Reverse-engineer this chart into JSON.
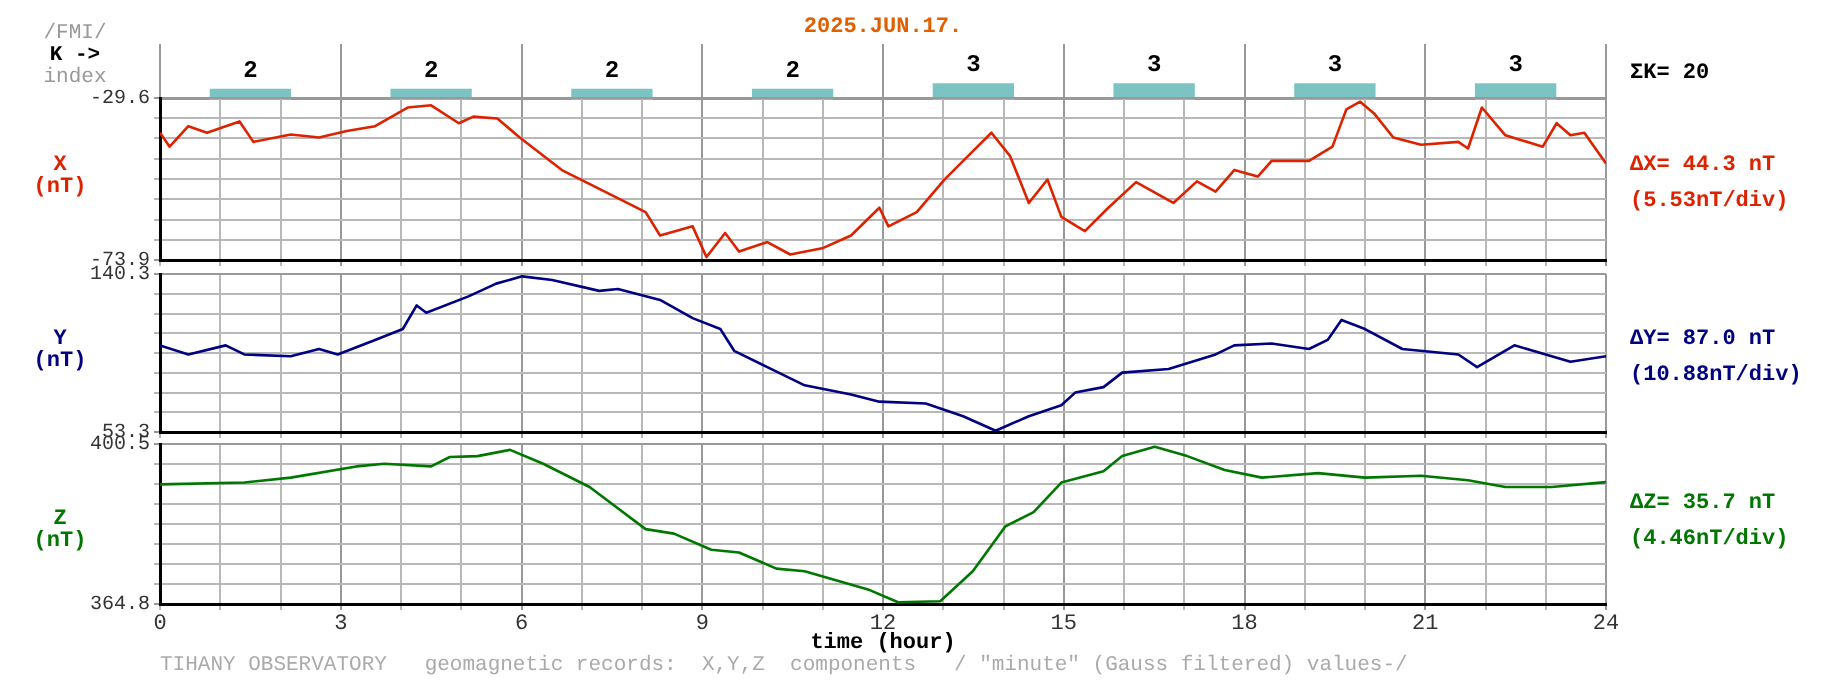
{
  "chart_data": [
    {
      "type": "bar",
      "title": "2025.JUN.17.",
      "ylabel": "K ->",
      "annotations": [
        "/FMI/",
        "index",
        "ΣK= 20"
      ],
      "categories": [
        null,
        null,
        null,
        null,
        null,
        null,
        null,
        null
      ],
      "values": [
        2,
        2,
        2,
        2,
        3,
        3,
        3,
        3
      ],
      "color": "#7cc4c4",
      "data_labels": true,
      "tick_labels": false,
      "grid": "x",
      "legend": false
    },
    {
      "type": "line",
      "ylabel": "X (nT)",
      "annotations": [
        "ΔX= 44.3 nT",
        "(5.53nT/div)"
      ],
      "series": [
        {
          "color": "#dd2200",
          "x": [
            0,
            0.16,
            0.47,
            0.78,
            1.32,
            1.55,
            2.17,
            2.64,
            3.1,
            3.57,
            4.11,
            4.5,
            4.96,
            5.2,
            5.6,
            5.97,
            6.67,
            7.44,
            8.06,
            8.3,
            8.84,
            9.07,
            9.38,
            9.61,
            10.08,
            10.46,
            11.01,
            11.47,
            11.94,
            12.09,
            12.56,
            13.02,
            13.41,
            13.8,
            14.11,
            14.42,
            14.73,
            14.96,
            15.35,
            15.74,
            16.2,
            16.82,
            17.21,
            17.52,
            17.83,
            18.22,
            18.45,
            19.07,
            19.46,
            19.69,
            19.92,
            20.16,
            20.47,
            20.93,
            21.55,
            21.71,
            21.94,
            22.33,
            22.95,
            23.18,
            23.41,
            23.64,
            24
          ],
          "values": [
            -39.1,
            -42.9,
            -37.3,
            -39.1,
            -36.0,
            -41.6,
            -39.6,
            -40.4,
            -38.6,
            -37.3,
            -32.2,
            -31.6,
            -36.5,
            -34.7,
            -35.2,
            -40.4,
            -49.3,
            -55.7,
            -60.8,
            -67.2,
            -64.7,
            -73.1,
            -66.5,
            -71.6,
            -69.0,
            -72.4,
            -70.6,
            -67.2,
            -59.6,
            -64.7,
            -60.8,
            -51.9,
            -45.5,
            -39.1,
            -45.5,
            -58.3,
            -51.9,
            -62.1,
            -66.0,
            -59.6,
            -52.6,
            -58.3,
            -52.4,
            -55.2,
            -49.3,
            -51.1,
            -46.8,
            -46.8,
            -42.9,
            -32.7,
            -30.6,
            -34.0,
            -40.4,
            -42.4,
            -41.6,
            -43.4,
            -32.2,
            -39.8,
            -42.9,
            -36.5,
            -39.8,
            -39.1,
            -47.5
          ]
        }
      ],
      "xlim": [
        0,
        24
      ],
      "xticks": [
        0,
        {
          "value": 1,
          "label": null
        },
        {
          "value": 2,
          "label": null
        },
        3,
        {
          "value": 4,
          "label": null
        },
        {
          "value": 5,
          "label": null
        },
        6,
        {
          "value": 7,
          "label": null
        },
        {
          "value": 8,
          "label": null
        },
        9,
        {
          "value": 10,
          "label": null
        },
        {
          "value": 11,
          "label": null
        },
        12,
        {
          "value": 13,
          "label": null
        },
        {
          "value": 14,
          "label": null
        },
        15,
        {
          "value": 16,
          "label": null
        },
        {
          "value": 17,
          "label": null
        },
        18,
        {
          "value": 19,
          "label": null
        },
        {
          "value": 20,
          "label": null
        },
        21,
        {
          "value": 22,
          "label": null
        },
        {
          "value": 23,
          "label": null
        },
        24
      ],
      "ylim": [
        -73.9,
        -29.6
      ],
      "yticks": [
        -73.9,
        {
          "value": -68.36,
          "label": null
        },
        {
          "value": -62.83,
          "label": null
        },
        {
          "value": -57.29,
          "label": null
        },
        {
          "value": -51.75,
          "label": null
        },
        {
          "value": -46.21,
          "label": null
        },
        {
          "value": -40.67,
          "label": null
        },
        {
          "value": -35.14,
          "label": null
        },
        -29.6
      ],
      "tick_labels": "y",
      "grid": true,
      "legend": false,
      "marker": "none",
      "line_style": "solid"
    },
    {
      "type": "line",
      "ylabel": "Y (nT)",
      "annotations": [
        "ΔY= 87.0 nT",
        "(10.88nT/div)"
      ],
      "series": [
        {
          "color": "#000080",
          "x": [
            0,
            0.47,
            1.09,
            1.4,
            2.17,
            2.64,
            2.95,
            3.57,
            4.03,
            4.26,
            4.42,
            5.12,
            5.58,
            6.01,
            6.51,
            7.29,
            7.6,
            8.3,
            8.84,
            9.3,
            9.53,
            10.08,
            10.7,
            11.47,
            11.94,
            12.71,
            13.33,
            13.87,
            14.42,
            14.96,
            15.19,
            15.66,
            15.97,
            16.74,
            17.52,
            17.83,
            18.45,
            19.07,
            19.38,
            19.61,
            20.0,
            20.62,
            21.55,
            21.86,
            22.48,
            23.41,
            24
          ],
          "values": [
            101,
            96,
            101,
            96,
            95,
            99,
            96,
            104,
            110,
            123,
            119,
            128,
            135,
            139,
            137,
            131,
            132,
            126,
            116,
            110,
            98,
            89,
            79,
            74,
            70,
            69,
            62,
            54,
            62,
            68,
            75,
            78,
            86,
            88,
            96,
            101,
            102,
            99,
            104,
            115,
            110,
            99,
            96,
            89,
            101,
            92,
            95
          ]
        }
      ],
      "xlim": [
        0,
        24
      ],
      "xticks": [
        0,
        {
          "value": 1,
          "label": null
        },
        {
          "value": 2,
          "label": null
        },
        3,
        {
          "value": 4,
          "label": null
        },
        {
          "value": 5,
          "label": null
        },
        6,
        {
          "value": 7,
          "label": null
        },
        {
          "value": 8,
          "label": null
        },
        9,
        {
          "value": 10,
          "label": null
        },
        {
          "value": 11,
          "label": null
        },
        12,
        {
          "value": 13,
          "label": null
        },
        {
          "value": 14,
          "label": null
        },
        15,
        {
          "value": 16,
          "label": null
        },
        {
          "value": 17,
          "label": null
        },
        18,
        {
          "value": 19,
          "label": null
        },
        {
          "value": 20,
          "label": null
        },
        21,
        {
          "value": 22,
          "label": null
        },
        {
          "value": 23,
          "label": null
        },
        24
      ],
      "ylim": [
        53.3,
        140.3
      ],
      "yticks": [
        53.3,
        {
          "value": 64.18,
          "label": null
        },
        {
          "value": 75.05,
          "label": null
        },
        {
          "value": 85.93,
          "label": null
        },
        {
          "value": 96.8,
          "label": null
        },
        {
          "value": 107.68,
          "label": null
        },
        {
          "value": 118.55,
          "label": null
        },
        {
          "value": 129.43,
          "label": null
        },
        140.3
      ],
      "tick_labels": "y",
      "grid": true,
      "legend": false,
      "marker": "none",
      "line_style": "solid"
    },
    {
      "type": "line",
      "ylabel": "Z (nT)",
      "xlabel": "time (hour)",
      "annotations": [
        "ΔZ= 35.7 nT",
        "(4.46nT/div)",
        "TIHANY OBSERVATORY   geomagnetic records:  X,Y,Z  components   / \"minute\" (Gauss filtered) values-/"
      ],
      "series": [
        {
          "color": "#007700",
          "x": [
            0,
            1.4,
            2.17,
            3.26,
            3.72,
            4.5,
            4.81,
            5.27,
            5.81,
            6.36,
            7.13,
            8.06,
            8.53,
            9.15,
            9.61,
            10.23,
            10.7,
            11.78,
            12.25,
            12.95,
            13.49,
            14.03,
            14.5,
            14.96,
            15.66,
            15.97,
            16.51,
            17.05,
            17.67,
            18.29,
            19.22,
            20.0,
            20.93,
            21.71,
            22.33,
            23.1,
            24
          ],
          "values": [
            391.5,
            391.9,
            393.0,
            395.5,
            396.1,
            395.5,
            397.6,
            397.8,
            399.2,
            396.1,
            390.9,
            381.5,
            380.5,
            376.9,
            376.3,
            372.7,
            372.1,
            367.9,
            365.2,
            365.4,
            372.1,
            382.1,
            385.3,
            391.9,
            394.4,
            397.8,
            399.9,
            397.8,
            394.7,
            393.0,
            394.0,
            393.0,
            393.4,
            392.4,
            390.9,
            390.9,
            392.0
          ]
        }
      ],
      "xlim": [
        0,
        24
      ],
      "xticks": [
        0,
        {
          "value": 1,
          "label": null
        },
        {
          "value": 2,
          "label": null
        },
        3,
        {
          "value": 4,
          "label": null
        },
        {
          "value": 5,
          "label": null
        },
        6,
        {
          "value": 7,
          "label": null
        },
        {
          "value": 8,
          "label": null
        },
        9,
        {
          "value": 10,
          "label": null
        },
        {
          "value": 11,
          "label": null
        },
        12,
        {
          "value": 13,
          "label": null
        },
        {
          "value": 14,
          "label": null
        },
        15,
        {
          "value": 16,
          "label": null
        },
        {
          "value": 17,
          "label": null
        },
        18,
        {
          "value": 19,
          "label": null
        },
        {
          "value": 20,
          "label": null
        },
        21,
        {
          "value": 22,
          "label": null
        },
        {
          "value": 23,
          "label": null
        },
        24
      ],
      "ylim": [
        364.8,
        400.5
      ],
      "yticks": [
        364.8,
        {
          "value": 369.26,
          "label": null
        },
        {
          "value": 373.73,
          "label": null
        },
        {
          "value": 378.19,
          "label": null
        },
        {
          "value": 382.65,
          "label": null
        },
        {
          "value": 387.11,
          "label": null
        },
        {
          "value": 391.58,
          "label": null
        },
        {
          "value": 396.04,
          "label": null
        },
        400.5
      ],
      "grid": true,
      "legend": false,
      "marker": "none",
      "line_style": "solid"
    }
  ]
}
